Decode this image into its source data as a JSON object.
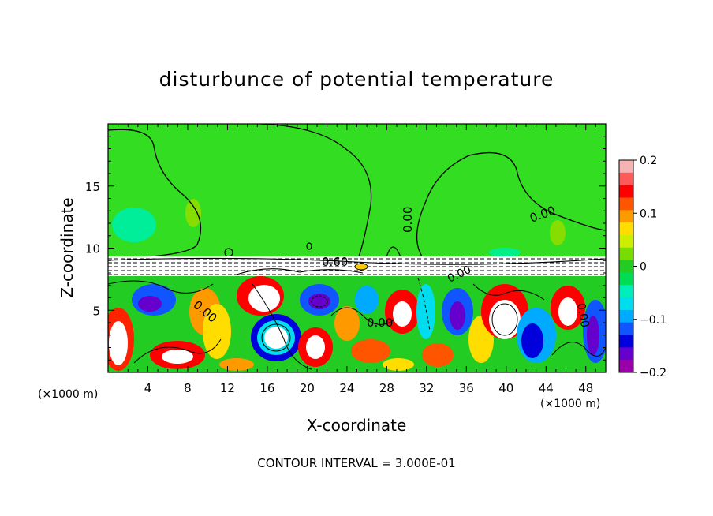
{
  "chart_data": {
    "type": "heatmap",
    "title": "disturbunce of potential temperature",
    "xlabel": "X-coordinate",
    "ylabel": "Z-coordinate",
    "x_unit_left": "(×1000 m)",
    "x_unit_right": "(×1000 m)",
    "x_range": [
      0,
      50
    ],
    "z_range": [
      0,
      20
    ],
    "x_ticks": [
      "4",
      "8",
      "12",
      "16",
      "20",
      "24",
      "28",
      "32",
      "36",
      "40",
      "44",
      "48"
    ],
    "z_ticks": [
      "5",
      "10",
      "15"
    ],
    "colorbar": {
      "range": [
        -0.2,
        0.2
      ],
      "tick_labels": [
        "0.2",
        "0.1",
        "0",
        "−0.1",
        "−0.2"
      ],
      "colors": [
        "#f7b3b3",
        "#ff5a5a",
        "#ff0000",
        "#ff5500",
        "#ff9900",
        "#ffdd00",
        "#ccee00",
        "#77dd00",
        "#22cc22",
        "#00dd55",
        "#00eebb",
        "#00ddee",
        "#00aaff",
        "#1155ff",
        "#0000dd",
        "#6600cc",
        "#9900aa"
      ]
    },
    "contour_labels": [
      "0.00",
      "0.00",
      "0.60",
      "0.00",
      "0.00",
      "0.00",
      "0.00"
    ],
    "footer": "CONTOUR INTERVAL = 3.000E-01",
    "grid": false
  }
}
